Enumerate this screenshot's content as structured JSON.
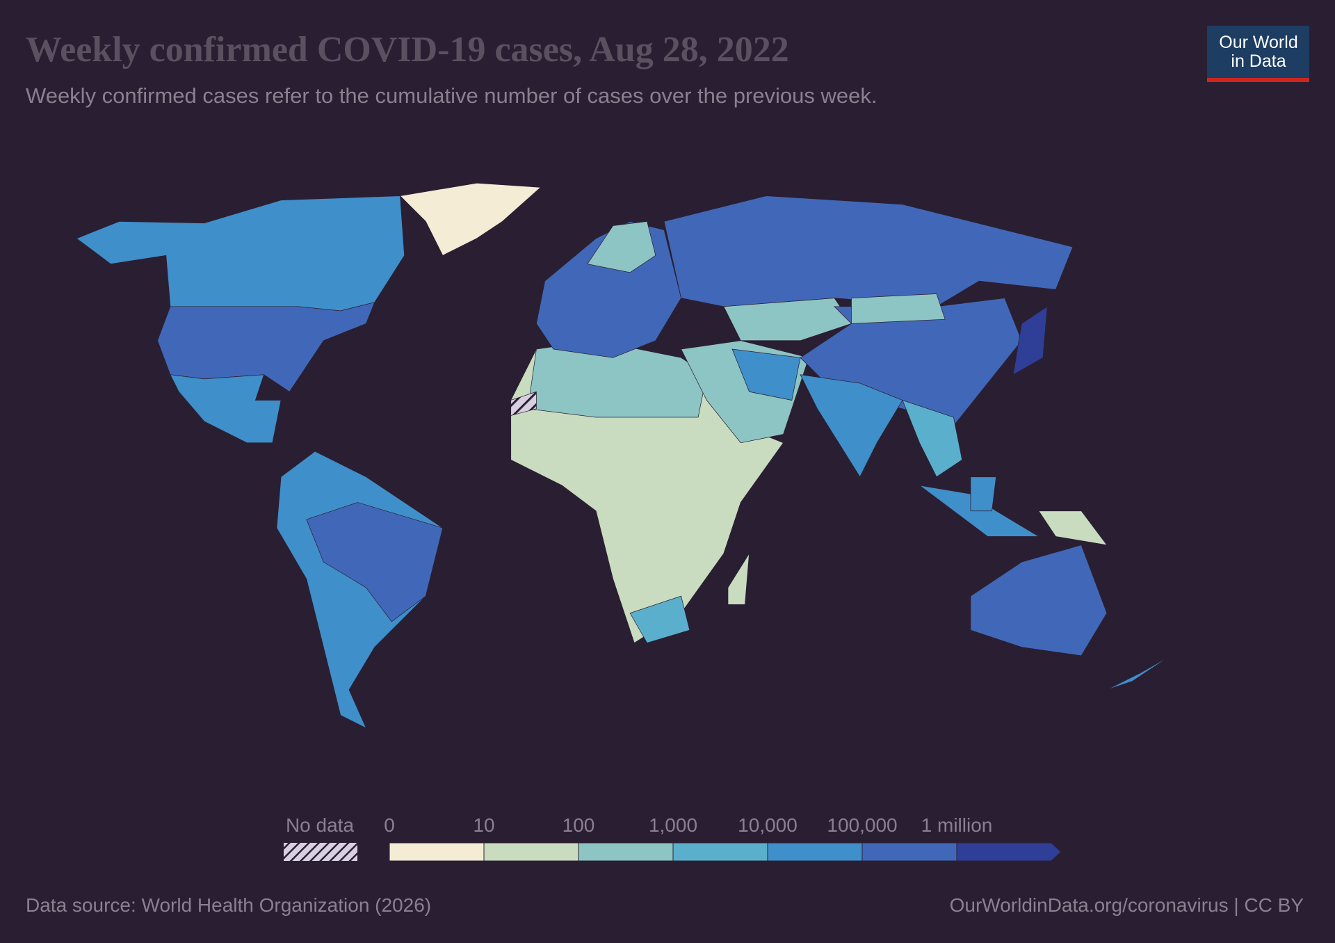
{
  "header": {
    "title": "Weekly confirmed COVID-19 cases, Aug 28, 2022",
    "subtitle": "Weekly confirmed cases refer to the cumulative number of cases over the previous week.",
    "logo": [
      "Our World",
      "in Data"
    ]
  },
  "legend": {
    "no_data_label": "No data",
    "labels": [
      "0",
      "10",
      "100",
      "1,000",
      "10,000",
      "100,000",
      "1 million"
    ],
    "colors": [
      "#f5ecd6",
      "#c9dcc0",
      "#8dc4c4",
      "#5ab0cc",
      "#3f8fca",
      "#4168b8",
      "#2f3f98"
    ]
  },
  "footer": {
    "source": "Data source: World Health Organization (2026)",
    "url": "OurWorldinData.org/coronavirus | CC BY"
  }
}
